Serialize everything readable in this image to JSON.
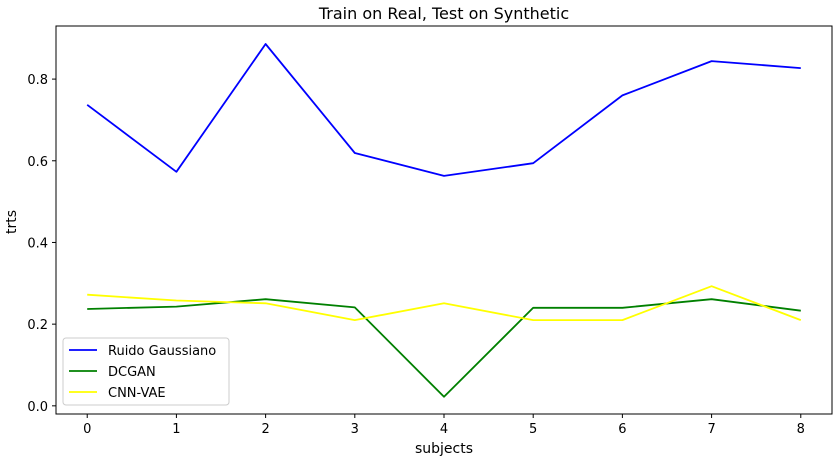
{
  "chart_data": {
    "type": "line",
    "title": "Train on Real, Test on Synthetic",
    "xlabel": "subjects",
    "ylabel": "trts",
    "x": [
      0,
      1,
      2,
      3,
      4,
      5,
      6,
      7,
      8
    ],
    "xlim": [
      -0.35,
      8.35
    ],
    "ylim": [
      -0.02,
      0.93
    ],
    "xticks": [
      0,
      1,
      2,
      3,
      4,
      5,
      6,
      7,
      8
    ],
    "yticks": [
      0.0,
      0.2,
      0.4,
      0.6,
      0.8
    ],
    "ytick_labels": [
      "0.0",
      "0.2",
      "0.4",
      "0.6",
      "0.8"
    ],
    "xtick_labels": [
      "0",
      "1",
      "2",
      "3",
      "4",
      "5",
      "6",
      "7",
      "8"
    ],
    "grid": false,
    "legend_position": "lower-left",
    "series": [
      {
        "name": "Ruido Gaussiano",
        "color": "#0000ff",
        "values": [
          0.737,
          0.573,
          0.886,
          0.619,
          0.563,
          0.594,
          0.76,
          0.844,
          0.827
        ]
      },
      {
        "name": "DCGAN",
        "color": "#008000",
        "values": [
          0.237,
          0.243,
          0.261,
          0.241,
          0.022,
          0.24,
          0.24,
          0.261,
          0.233
        ]
      },
      {
        "name": "CNN-VAE",
        "color": "#ffff00",
        "values": [
          0.272,
          0.258,
          0.251,
          0.21,
          0.251,
          0.21,
          0.21,
          0.293,
          0.21
        ]
      }
    ]
  }
}
